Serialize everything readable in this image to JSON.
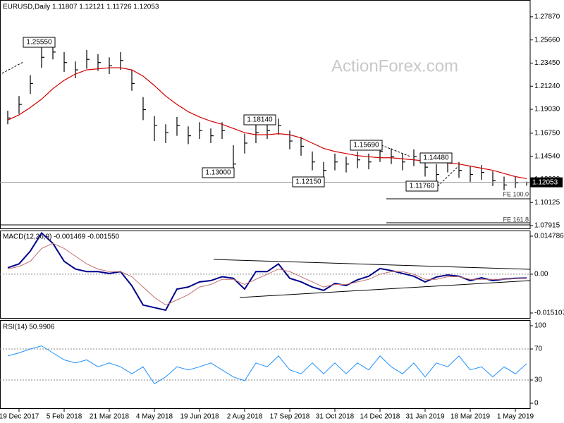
{
  "chart_data": [
    {
      "type": "hlc",
      "title": "EURUSD,Daily 1.11807 1.12121 1.11726 1.12053",
      "watermark": "ActionForex.com",
      "color": "#000000",
      "categories": [
        null,
        "19 Dec 2017",
        null,
        null,
        null,
        "5 Feb 2018",
        null,
        null,
        null,
        "21 Mar 2018",
        null,
        null,
        null,
        "4 May 2018",
        null,
        null,
        null,
        "19 Jun 2018",
        null,
        null,
        null,
        "2 Aug 2018",
        null,
        null,
        null,
        "17 Sep 2018",
        null,
        null,
        null,
        "31 Oct 2018",
        null,
        null,
        null,
        "14 Dec 2018",
        null,
        null,
        null,
        "31 Jan 2019",
        null,
        null,
        null,
        "18 Mar 2019",
        null,
        null,
        null,
        "1 May 2019",
        null
      ],
      "high": [
        1.189,
        1.203,
        1.223,
        1.25,
        1.2555,
        1.245,
        1.236,
        1.247,
        1.243,
        1.24,
        1.245,
        1.228,
        1.202,
        1.184,
        1.176,
        1.183,
        1.174,
        1.178,
        1.172,
        1.178,
        1.156,
        1.167,
        1.176,
        1.178,
        1.1814,
        1.17,
        1.164,
        1.15,
        1.14,
        1.148,
        1.145,
        1.15,
        1.148,
        1.1569,
        1.153,
        1.148,
        1.152,
        1.145,
        1.138,
        1.1448,
        1.14,
        1.136,
        1.137,
        1.131,
        1.126,
        1.126,
        1.1212
      ],
      "low": [
        1.176,
        1.186,
        1.205,
        1.23,
        1.238,
        1.226,
        1.22,
        1.229,
        1.227,
        1.224,
        1.228,
        1.208,
        1.18,
        1.16,
        1.158,
        1.165,
        1.157,
        1.162,
        1.158,
        1.162,
        1.13,
        1.148,
        1.158,
        1.162,
        1.166,
        1.152,
        1.146,
        1.132,
        1.1215,
        1.132,
        1.13,
        1.134,
        1.133,
        1.14,
        1.138,
        1.132,
        1.136,
        1.126,
        1.1176,
        1.13,
        1.125,
        1.121,
        1.123,
        1.117,
        1.113,
        1.115,
        1.1173
      ],
      "close": [
        1.182,
        1.195,
        1.215,
        1.24,
        1.245,
        1.235,
        1.228,
        1.238,
        1.235,
        1.232,
        1.237,
        1.215,
        1.19,
        1.175,
        1.168,
        1.175,
        1.165,
        1.17,
        1.165,
        1.17,
        1.138,
        1.158,
        1.168,
        1.17,
        1.175,
        1.16,
        1.155,
        1.14,
        1.132,
        1.14,
        1.138,
        1.142,
        1.14,
        1.15,
        1.145,
        1.14,
        1.145,
        1.135,
        1.128,
        1.14,
        1.132,
        1.128,
        1.13,
        1.122,
        1.118,
        1.12,
        1.1205
      ],
      "ma": {
        "color": "#d00000",
        "values": [
          1.18,
          1.185,
          1.192,
          1.2,
          1.21,
          1.218,
          1.224,
          1.228,
          1.229,
          1.23,
          1.23,
          1.228,
          1.222,
          1.213,
          1.203,
          1.195,
          1.188,
          1.183,
          1.179,
          1.176,
          1.172,
          1.168,
          1.166,
          1.166,
          1.167,
          1.166,
          1.163,
          1.158,
          1.153,
          1.15,
          1.148,
          1.146,
          1.145,
          1.144,
          1.144,
          1.143,
          1.142,
          1.141,
          1.14,
          1.139,
          1.138,
          1.136,
          1.134,
          1.132,
          1.129,
          1.126,
          1.124
        ]
      },
      "last_price": 1.12053,
      "annotations": [
        "1.25550",
        "1.18140",
        "1.13000",
        "1.15690",
        "1.12150",
        "1.14480",
        "1.11760",
        "FE 100.0",
        "FE 161.8"
      ],
      "ylim": [
        1.0758,
        1.2914
      ],
      "yticks": [
        {
          "value": 1.2787,
          "label": "1.27870"
        },
        {
          "value": 1.2566,
          "label": "1.25660"
        },
        {
          "value": 1.2345,
          "label": "1.23450"
        },
        {
          "value": 1.2124,
          "label": "1.21240"
        },
        {
          "value": 1.1903,
          "label": "1.19030"
        },
        {
          "value": 1.1675,
          "label": "1.16750"
        },
        {
          "value": 1.1454,
          "label": "1.14540"
        },
        {
          "value": 1.1233,
          "label": "1.12330"
        },
        1.10125,
        1.07915
      ]
    },
    {
      "type": "line",
      "title": "MACD(12,26,9) -0.001469 -0.001550",
      "series": [
        {
          "color": "#00008b",
          "values": [
            0.0025,
            0.004,
            0.009,
            0.016,
            0.012,
            0.005,
            0.002,
            0.001,
            0.001,
            0.0003,
            0.001,
            -0.0045,
            -0.012,
            -0.013,
            -0.014,
            -0.0058,
            -0.005,
            -0.003,
            -0.0025,
            -0.001,
            -0.0016,
            -0.0058,
            0.001,
            0.001,
            0.004,
            -0.0016,
            -0.003,
            -0.005,
            -0.0063,
            -0.0036,
            -0.0044,
            -0.0022,
            -0.0008,
            0.0022,
            0.0014,
            0.0003,
            -0.0008,
            -0.003,
            -0.0011,
            -0.0003,
            -0.0008,
            -0.0025,
            -0.0014,
            -0.0025,
            -0.0019,
            -0.0016,
            -0.0015
          ]
        },
        {
          "color": "#c07070",
          "values": [
            0.002,
            0.003,
            0.005,
            0.01,
            0.012,
            0.01,
            0.007,
            0.004,
            0.002,
            0.001,
            0.001,
            -0.001,
            -0.005,
            -0.009,
            -0.012,
            -0.01,
            -0.008,
            -0.005,
            -0.004,
            -0.002,
            -0.002,
            -0.004,
            -0.002,
            0,
            0.002,
            0.001,
            -0.001,
            -0.003,
            -0.005,
            -0.004,
            -0.004,
            -0.003,
            -0.002,
            0,
            0.001,
            0.001,
            0,
            -0.002,
            -0.002,
            -0.001,
            -0.001,
            -0.002,
            -0.002,
            -0.002,
            -0.002,
            -0.0017,
            -0.00155
          ]
        }
      ],
      "levels": [
        0
      ],
      "ylim": [
        -0.017301,
        0.01698
      ],
      "yticks": [
        0.014786,
        {
          "value": 0,
          "label": "0.00"
        },
        -0.015107
      ]
    },
    {
      "type": "line",
      "title": "RSI(14) 50.9906",
      "series": [
        {
          "color": "#1e90ff",
          "values": [
            61,
            65,
            70,
            74,
            65,
            56,
            52,
            56,
            47,
            52,
            47,
            38,
            47,
            25,
            34,
            47,
            43,
            47,
            52,
            43,
            34,
            29,
            52,
            47,
            61,
            43,
            38,
            52,
            38,
            52,
            38,
            52,
            43,
            61,
            47,
            38,
            52,
            34,
            52,
            47,
            61,
            43,
            47,
            34,
            47,
            38,
            51
          ]
        }
      ],
      "levels": [
        70,
        30
      ],
      "ylim": [
        -7.3,
        107.3
      ],
      "yticks": [
        100,
        70,
        30,
        0
      ]
    }
  ]
}
